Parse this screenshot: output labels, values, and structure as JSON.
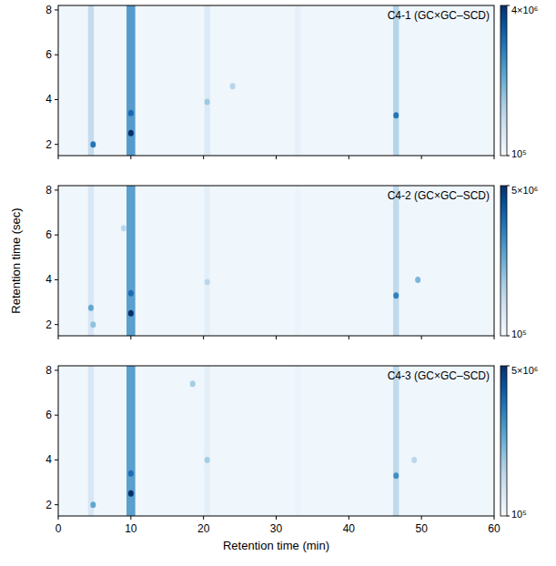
{
  "chart_data": [
    {
      "type": "heatmap",
      "title": "C4-1 (GC×GC–SCD)",
      "tick_labels": "y",
      "xlim": [
        0,
        60
      ],
      "xticks": [
        0,
        10,
        20,
        30,
        40,
        50,
        60
      ],
      "ylim": [
        1.5,
        8.2
      ],
      "yticks": [
        2,
        4,
        6,
        8
      ],
      "log": true,
      "colorbar_range": [
        100000,
        4000000
      ],
      "colorbar_ticks": [
        {
          "value": 100000,
          "label": "10⁵"
        },
        {
          "value": 4000000,
          "label": "4×10⁶"
        }
      ],
      "band_x": [
        4.5,
        10,
        20.5,
        33,
        46.5
      ],
      "band_widths": [
        0.8,
        1.2,
        0.8,
        0.8,
        0.8
      ],
      "band_values": [
        280000,
        1100000,
        180000,
        140000,
        350000
      ],
      "spot_x": [
        4.8,
        10,
        10,
        46.5,
        20.5,
        24
      ],
      "spot_y": [
        2.0,
        2.5,
        3.4,
        3.3,
        3.9,
        4.6
      ],
      "spot_values": [
        1500000,
        4000000,
        1800000,
        1500000,
        400000,
        300000
      ]
    },
    {
      "type": "heatmap",
      "title": "C4-2 (GC×GC–SCD)",
      "tick_labels": "y",
      "ylabel": "Retention time (sec)",
      "xlim": [
        0,
        60
      ],
      "xticks": [
        0,
        10,
        20,
        30,
        40,
        50,
        60
      ],
      "ylim": [
        1.5,
        8.2
      ],
      "yticks": [
        2,
        4,
        6,
        8
      ],
      "log": true,
      "colorbar_range": [
        100000,
        5000000
      ],
      "colorbar_ticks": [
        {
          "value": 100000,
          "label": "10⁵"
        },
        {
          "value": 5000000,
          "label": "5×10⁶"
        }
      ],
      "band_x": [
        4.5,
        10,
        20.5,
        33,
        46.5
      ],
      "band_widths": [
        0.8,
        1.2,
        0.8,
        0.8,
        0.8
      ],
      "band_values": [
        200000,
        1200000,
        150000,
        130000,
        320000
      ],
      "spot_x": [
        4.5,
        4.8,
        10,
        10,
        46.5,
        49.5,
        20.5,
        9
      ],
      "spot_y": [
        2.75,
        2.0,
        2.5,
        3.4,
        3.3,
        4.0,
        3.9,
        6.3
      ],
      "spot_values": [
        800000,
        500000,
        5000000,
        2000000,
        1500000,
        600000,
        300000,
        300000
      ]
    },
    {
      "type": "heatmap",
      "title": "C4-3 (GC×GC–SCD)",
      "xlabel": "Retention time (min)",
      "xlim": [
        0,
        60
      ],
      "xticks": [
        0,
        10,
        20,
        30,
        40,
        50,
        60
      ],
      "ylim": [
        1.5,
        8.2
      ],
      "yticks": [
        2,
        4,
        6,
        8
      ],
      "log": true,
      "colorbar_range": [
        100000,
        5000000
      ],
      "colorbar_ticks": [
        {
          "value": 100000,
          "label": "10⁵"
        },
        {
          "value": 5000000,
          "label": "5×10⁶"
        }
      ],
      "band_x": [
        4.5,
        10,
        20.5,
        33,
        46.5
      ],
      "band_widths": [
        0.8,
        1.2,
        0.8,
        0.8,
        0.8
      ],
      "band_values": [
        200000,
        1200000,
        150000,
        130000,
        320000
      ],
      "spot_x": [
        4.8,
        10,
        10,
        46.5,
        20.5,
        18.5,
        49
      ],
      "spot_y": [
        2.0,
        2.5,
        3.4,
        3.3,
        4.0,
        7.4,
        4.0
      ],
      "spot_values": [
        800000,
        5000000,
        2000000,
        1200000,
        400000,
        400000,
        300000
      ]
    }
  ]
}
